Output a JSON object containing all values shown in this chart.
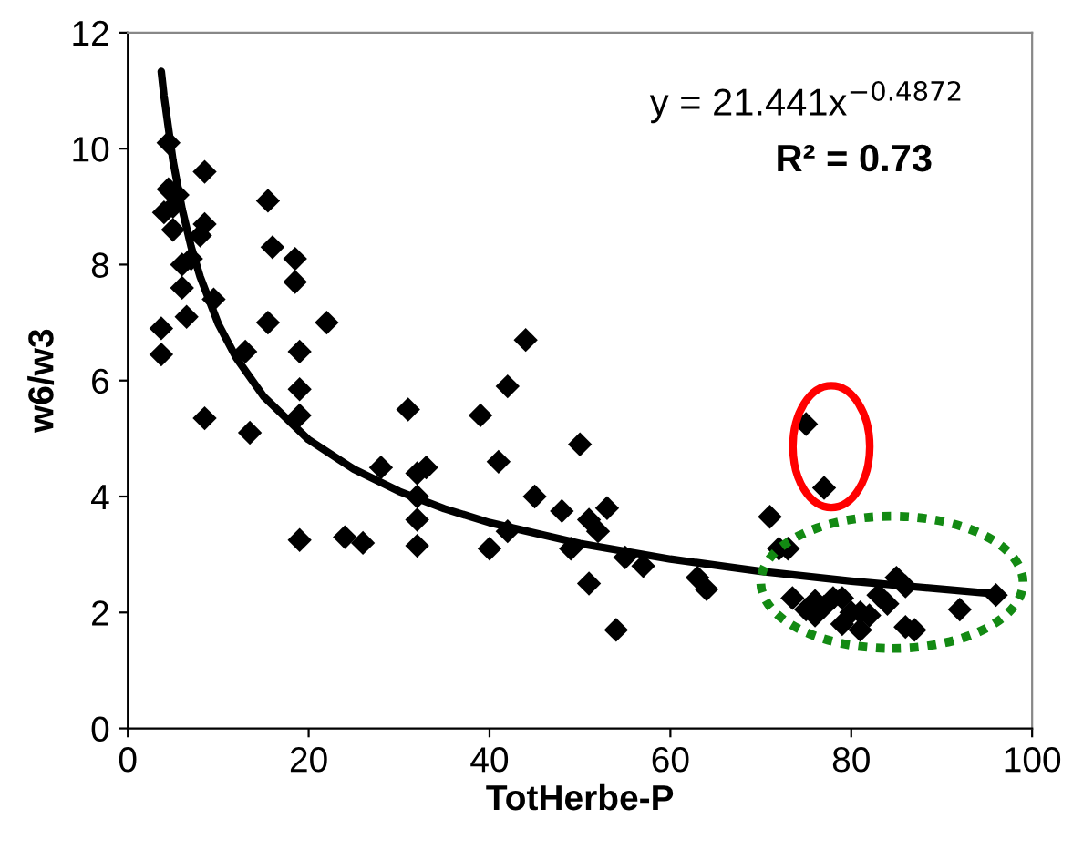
{
  "chart_data": {
    "type": "scatter",
    "xlabel": "TotHerbe-P",
    "ylabel": "w6/w3",
    "xlim": [
      0,
      100
    ],
    "xticks": [
      0,
      20,
      40,
      60,
      80,
      100
    ],
    "ylim": [
      0,
      12
    ],
    "yticks": [
      0,
      2,
      4,
      6,
      8,
      10,
      12
    ],
    "grid": false,
    "annotations": [
      "y = 21.441x$^{−0.4872}$",
      "R² = 0.73"
    ],
    "series": [
      {
        "marker": "diamond",
        "color": "#000000",
        "x": [
          3.7,
          3.7,
          4,
          4.5,
          4.5,
          5,
          5,
          5.5,
          6,
          6,
          6.5,
          7,
          8,
          8.5,
          8.5,
          8.5,
          9.5,
          13,
          13.5,
          15.5,
          15.5,
          16,
          18.5,
          18.5,
          19,
          19,
          19,
          19,
          22,
          24,
          26,
          28,
          31,
          32,
          32,
          32,
          32,
          33,
          39,
          40,
          41,
          42,
          42,
          44,
          45,
          48,
          49,
          50,
          51,
          51,
          52,
          53,
          54,
          55,
          57,
          63,
          64,
          71,
          72,
          73,
          75,
          77,
          73.5,
          75,
          76,
          76,
          77,
          78,
          79,
          79,
          80,
          81,
          81,
          82,
          83,
          84,
          85,
          86,
          86,
          87,
          92,
          96
        ],
        "values": [
          6.9,
          6.45,
          8.9,
          10.1,
          9.3,
          9.0,
          8.6,
          9.2,
          7.6,
          8.0,
          7.1,
          8.1,
          8.5,
          9.6,
          8.7,
          5.35,
          7.4,
          6.5,
          5.1,
          7.0,
          9.1,
          8.3,
          8.1,
          7.7,
          6.5,
          5.85,
          5.4,
          3.25,
          7.0,
          3.3,
          3.2,
          4.5,
          5.5,
          4.4,
          3.6,
          3.15,
          4.0,
          4.5,
          5.4,
          3.1,
          4.6,
          3.4,
          5.9,
          6.7,
          4.0,
          3.75,
          3.1,
          4.9,
          3.6,
          2.5,
          3.4,
          3.8,
          1.7,
          2.95,
          2.8,
          2.6,
          2.4,
          3.65,
          3.1,
          3.1,
          5.25,
          4.15,
          2.25,
          2.05,
          2.2,
          1.95,
          2.1,
          2.25,
          1.8,
          2.25,
          2.0,
          1.7,
          2.0,
          1.95,
          2.3,
          2.15,
          2.6,
          2.45,
          1.75,
          1.7,
          2.05,
          2.3
        ]
      },
      {
        "type": "line",
        "marker": "none",
        "color": "#000000",
        "x": [
          3.7,
          4,
          5,
          6,
          7,
          8,
          10,
          12,
          15,
          20,
          25,
          30,
          35,
          40,
          50,
          60,
          70,
          80,
          96
        ],
        "values": [
          11.33,
          10.91,
          9.79,
          8.96,
          8.31,
          7.79,
          6.98,
          6.39,
          5.73,
          4.98,
          4.47,
          4.09,
          3.79,
          3.55,
          3.19,
          2.92,
          2.71,
          2.54,
          2.32
        ]
      }
    ]
  }
}
